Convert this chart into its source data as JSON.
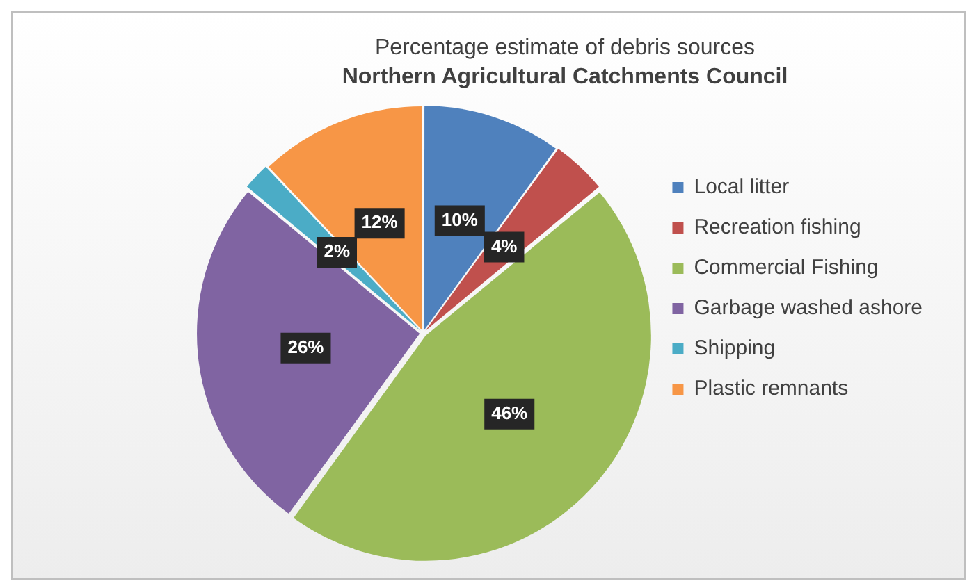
{
  "chart_data": {
    "type": "pie",
    "title": "Percentage estimate of debris sources",
    "subtitle": "Northern Agricultural Catchments Council",
    "categories": [
      "Local litter",
      "Recreation fishing",
      "Commercial Fishing",
      "Garbage washed ashore",
      "Shipping",
      "Plastic remnants"
    ],
    "values": [
      10,
      4,
      46,
      26,
      2,
      12
    ],
    "value_labels": [
      "10%",
      "4%",
      "46%",
      "26%",
      "2%",
      "12%"
    ],
    "colors": [
      "#4f81bd",
      "#c0504d",
      "#9bbb59",
      "#8064a2",
      "#4bacc6",
      "#f79646"
    ],
    "legend": "right"
  }
}
